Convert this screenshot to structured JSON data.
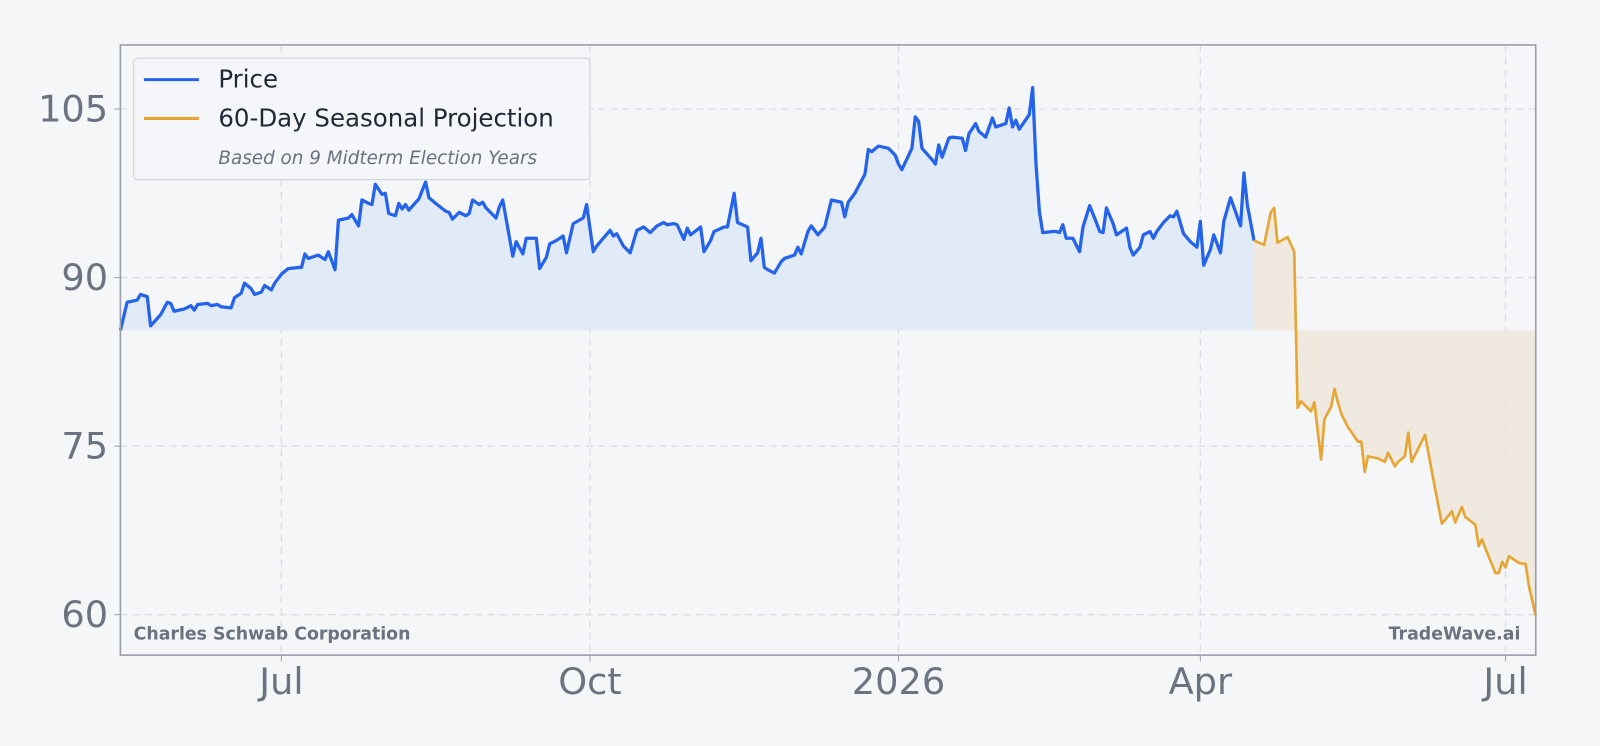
{
  "chart_data": {
    "type": "line",
    "legend_note": "Based on 9 Midterm Election Years",
    "company": "Charles Schwab Corporation",
    "watermark": "TradeWave.ai",
    "xlim": [
      -48,
      374
    ],
    "xticks": [
      {
        "value": 0,
        "label": "Jul"
      },
      {
        "value": 92,
        "label": "Oct"
      },
      {
        "value": 184,
        "label": "2026"
      },
      {
        "value": 274,
        "label": "Apr"
      },
      {
        "value": 365,
        "label": "Jul"
      }
    ],
    "ylim": [
      56.4,
      110.7
    ],
    "yticks": [
      60,
      75,
      90,
      105
    ],
    "grid": true,
    "legend_position": "upper left",
    "series": [
      {
        "name": "Price",
        "color": "#2563eb",
        "fill_color": "#dde9f7",
        "x": [
          -48,
          -46,
          -43,
          -42,
          -40,
          -39,
          -36,
          -34,
          -33,
          -32,
          -29,
          -27,
          -26,
          -25,
          -22,
          -21,
          -19,
          -18,
          -15,
          -14,
          -12,
          -11,
          -9,
          -8,
          -6,
          -5,
          -3,
          -2,
          0,
          2,
          5,
          6,
          7,
          8,
          11,
          13,
          14,
          16,
          17,
          20,
          21,
          23,
          24,
          26,
          27,
          28,
          30,
          31,
          32,
          34,
          35,
          36,
          37,
          38,
          41,
          43,
          44,
          46,
          49,
          50,
          51,
          53,
          55,
          56,
          57,
          59,
          60,
          61,
          64,
          65,
          66,
          69,
          70,
          72,
          73,
          76,
          77,
          79,
          80,
          82,
          84,
          85,
          87,
          90,
          91,
          93,
          94,
          96,
          98,
          99,
          100,
          102,
          104,
          106,
          108,
          110,
          111,
          112,
          114,
          115,
          117,
          118,
          120,
          121,
          122,
          125,
          126,
          128,
          129,
          132,
          133,
          135,
          136,
          139,
          140,
          142,
          143,
          144,
          145,
          147,
          149,
          150,
          153,
          154,
          155,
          157,
          158,
          160,
          162,
          164,
          167,
          168,
          169,
          171,
          174,
          175,
          176,
          178,
          181,
          183,
          184,
          185,
          188,
          189,
          190,
          191,
          194,
          195,
          196,
          197,
          199,
          200,
          203,
          204,
          205,
          207,
          208,
          210,
          212,
          213,
          216,
          217,
          218,
          219,
          220,
          223,
          224,
          225,
          226,
          227,
          230,
          231,
          232,
          233,
          234,
          236,
          238,
          239,
          241,
          243,
          244,
          245,
          246,
          248,
          249,
          250,
          252,
          253,
          254,
          256,
          257,
          259,
          260,
          261,
          263,
          265,
          266,
          267,
          269,
          271,
          273,
          274,
          275,
          277,
          278,
          280,
          281,
          283,
          286,
          287,
          288,
          290
        ],
        "values": [
          85.3,
          87.8,
          88.0,
          88.5,
          88.3,
          85.7,
          86.7,
          87.8,
          87.7,
          87.0,
          87.2,
          87.5,
          87.1,
          87.6,
          87.7,
          87.5,
          87.6,
          87.4,
          87.3,
          88.2,
          88.6,
          89.5,
          89.0,
          88.5,
          88.7,
          89.3,
          88.9,
          89.5,
          90.3,
          90.8,
          90.9,
          90.9,
          92.1,
          91.7,
          92.0,
          91.6,
          92.3,
          90.7,
          95.1,
          95.3,
          95.6,
          94.6,
          96.9,
          96.6,
          96.5,
          98.3,
          97.4,
          97.5,
          95.7,
          95.5,
          96.6,
          96.1,
          96.5,
          96.0,
          97.0,
          98.5,
          97.1,
          96.6,
          95.9,
          95.8,
          95.2,
          95.8,
          95.5,
          95.7,
          96.9,
          96.5,
          96.7,
          96.2,
          95.3,
          96.3,
          96.9,
          91.9,
          93.2,
          92.1,
          93.5,
          93.5,
          90.8,
          91.8,
          93.0,
          93.3,
          93.7,
          92.2,
          94.8,
          95.3,
          96.5,
          92.3,
          92.8,
          93.5,
          94.2,
          93.7,
          93.9,
          92.8,
          92.2,
          94.2,
          94.5,
          94.0,
          94.3,
          94.6,
          94.9,
          94.7,
          94.8,
          94.7,
          93.4,
          94.4,
          93.8,
          94.5,
          92.3,
          93.3,
          94.1,
          94.5,
          94.5,
          97.5,
          94.9,
          94.5,
          91.5,
          92.2,
          93.5,
          90.9,
          90.7,
          90.4,
          91.4,
          91.7,
          92.0,
          92.7,
          92.1,
          94.1,
          94.6,
          93.8,
          94.5,
          96.9,
          96.7,
          95.4,
          96.7,
          97.5,
          99.2,
          101.4,
          101.2,
          101.7,
          101.5,
          100.9,
          100.1,
          99.6,
          101.5,
          104.3,
          103.9,
          101.5,
          100.5,
          100.1,
          101.8,
          100.7,
          102.4,
          102.5,
          102.4,
          101.3,
          102.8,
          103.7,
          103.0,
          102.5,
          104.2,
          103.4,
          103.7,
          105.1,
          103.4,
          104.0,
          103.2,
          104.5,
          106.9,
          100.1,
          95.9,
          94.0,
          94.1,
          94.1,
          94.0,
          94.7,
          93.5,
          93.5,
          92.3,
          94.5,
          96.4,
          94.9,
          94.1,
          94.0,
          96.2,
          94.8,
          93.8,
          94.0,
          94.4,
          92.7,
          92.0,
          92.7,
          93.8,
          94.1,
          93.5,
          94.1,
          94.9,
          95.5,
          95.4,
          95.9,
          93.9,
          93.2,
          92.7,
          95.0,
          91.1,
          92.5,
          93.8,
          92.2,
          95.0,
          97.1,
          94.6,
          99.3,
          96.5,
          93.3
        ]
      },
      {
        "name": "60-Day Seasonal Projection",
        "color": "#e5a635",
        "fill_color": "#efe6da",
        "x": [
          290,
          293,
          295,
          296,
          297,
          300,
          302,
          303,
          304,
          307,
          308,
          310,
          311,
          313,
          314,
          315,
          316,
          318,
          321,
          322,
          323,
          324,
          327,
          329,
          330,
          332,
          333,
          335,
          336,
          337,
          339,
          341,
          343,
          346,
          348,
          349,
          350,
          352,
          353,
          356,
          357,
          358,
          359,
          362,
          363,
          364,
          365,
          366,
          369,
          371,
          372,
          374
        ],
        "values": [
          93.3,
          92.9,
          95.8,
          96.2,
          93.1,
          93.6,
          92.3,
          78.4,
          79.0,
          78.1,
          78.9,
          73.8,
          77.4,
          78.5,
          80.1,
          78.9,
          77.9,
          76.7,
          75.4,
          75.4,
          72.7,
          74.1,
          73.9,
          73.6,
          74.4,
          73.2,
          73.6,
          74.1,
          76.2,
          73.6,
          74.8,
          76.0,
          72.8,
          68.1,
          68.8,
          69.2,
          68.2,
          69.6,
          68.7,
          68.0,
          66.1,
          66.7,
          65.9,
          63.7,
          63.7,
          64.7,
          64.2,
          65.2,
          64.6,
          64.5,
          62.5,
          59.9
        ]
      }
    ]
  }
}
